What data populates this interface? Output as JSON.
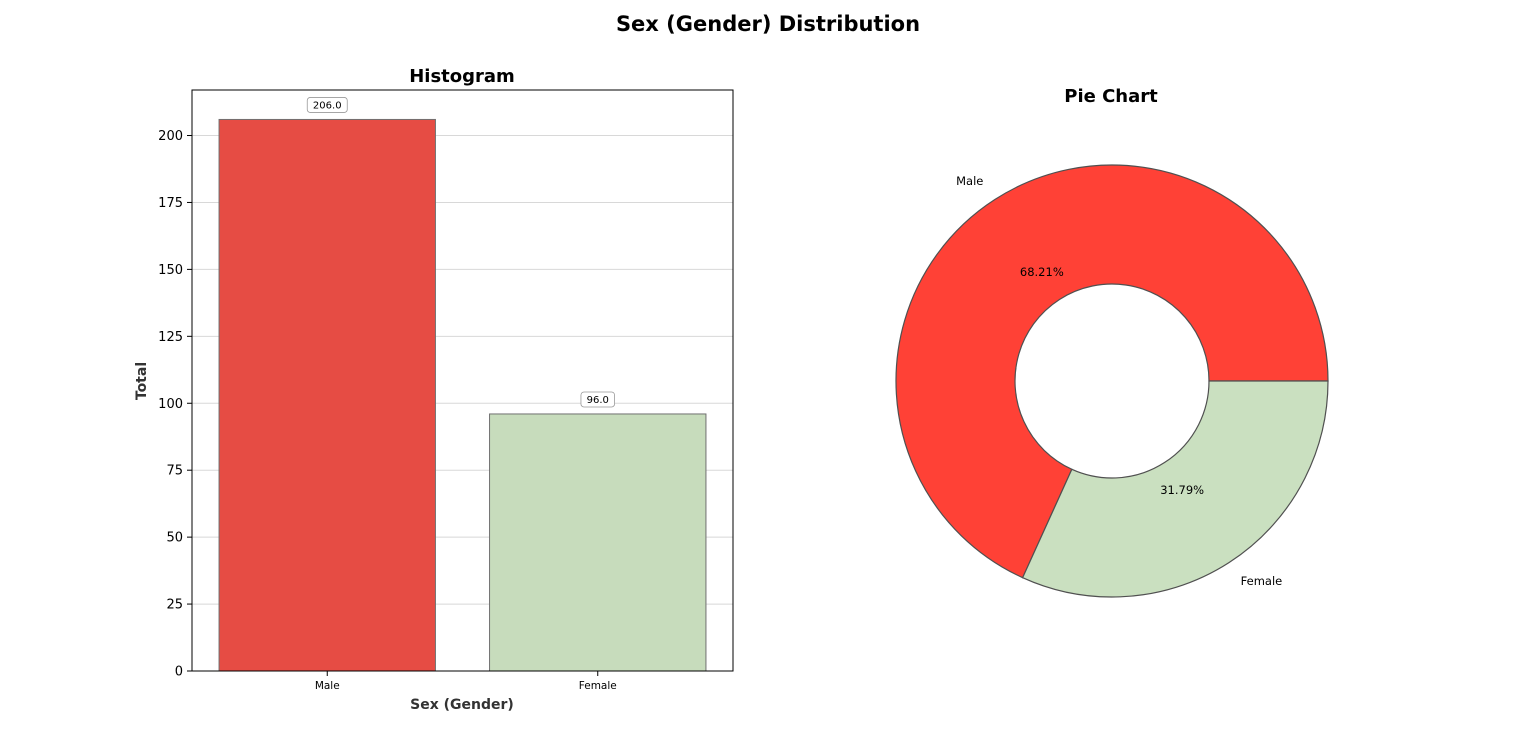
{
  "figure": {
    "title": "Sex (Gender) Distribution"
  },
  "colors": {
    "male": "#e64c44",
    "female": "#c7dcbc",
    "pie_male": "#ff4136",
    "pie_female": "#cae0c0",
    "edge": "#555555",
    "grid": "#d8d8d8",
    "axis_label": "#333333"
  },
  "chart_data": [
    {
      "type": "bar",
      "title": "Histogram",
      "xlabel": "Sex (Gender)",
      "ylabel": "Total",
      "categories": [
        "Male",
        "Female"
      ],
      "values": [
        206,
        96
      ],
      "value_labels": [
        "206.0",
        "96.0"
      ],
      "ylim": [
        0,
        217
      ],
      "yticks": [
        0,
        25,
        50,
        75,
        100,
        125,
        150,
        175,
        200
      ],
      "ytick_labels": [
        "0",
        "25",
        "50",
        "75",
        "100",
        "125",
        "150",
        "175",
        "200"
      ],
      "grid": "y"
    },
    {
      "type": "pie",
      "title": "Pie Chart",
      "donut": true,
      "labels": [
        "Male",
        "Female"
      ],
      "values": [
        206,
        96
      ],
      "percent_labels": [
        "68.21%",
        "31.79%"
      ]
    }
  ]
}
